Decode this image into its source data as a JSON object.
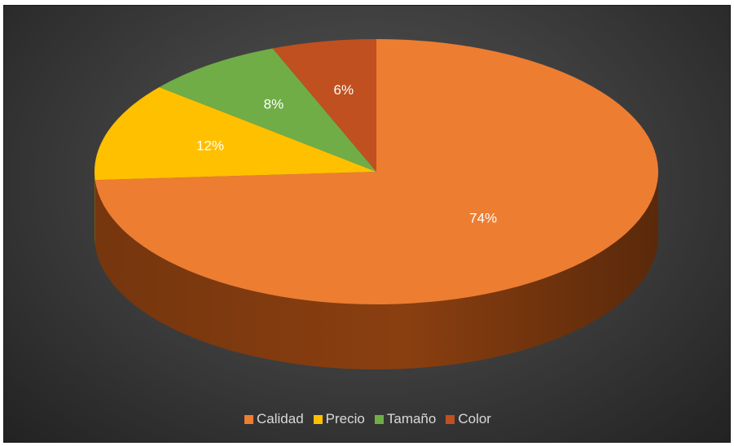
{
  "chart_data": {
    "type": "pie",
    "style": "3d",
    "categories": [
      "Calidad",
      "Precio",
      "Tamaño",
      "Color"
    ],
    "values": [
      74,
      12,
      8,
      6
    ],
    "labels": [
      "74%",
      "12%",
      "8%",
      "6%"
    ],
    "colors": [
      "#ed7d31",
      "#ffc000",
      "#70ad47",
      "#c0501f"
    ],
    "side_colors": [
      "#8a3f10",
      "#9a7000",
      "#3f6a24",
      "#6b2a0c"
    ],
    "legend_position": "bottom",
    "background": "#3c3c3c"
  }
}
